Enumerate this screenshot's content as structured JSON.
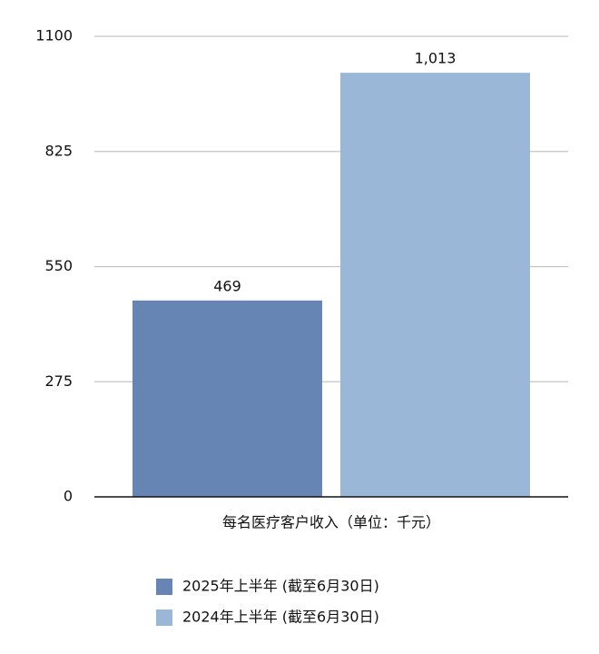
{
  "chart_data": {
    "type": "bar",
    "categories": [
      "每名医疗客户收入（单位：千元）"
    ],
    "series": [
      {
        "name": "2025年上半年 (截至6月30日)",
        "color": "#6685b4",
        "values": [
          469
        ]
      },
      {
        "name": "2024年上半年 (截至6月30日)",
        "color": "#9bb7d7",
        "values": [
          1013
        ],
        "value_labels": [
          "1,013"
        ]
      }
    ],
    "ylim": [
      0,
      1100
    ],
    "yticks": [
      0,
      275,
      550,
      825,
      1100
    ],
    "grid": true
  }
}
